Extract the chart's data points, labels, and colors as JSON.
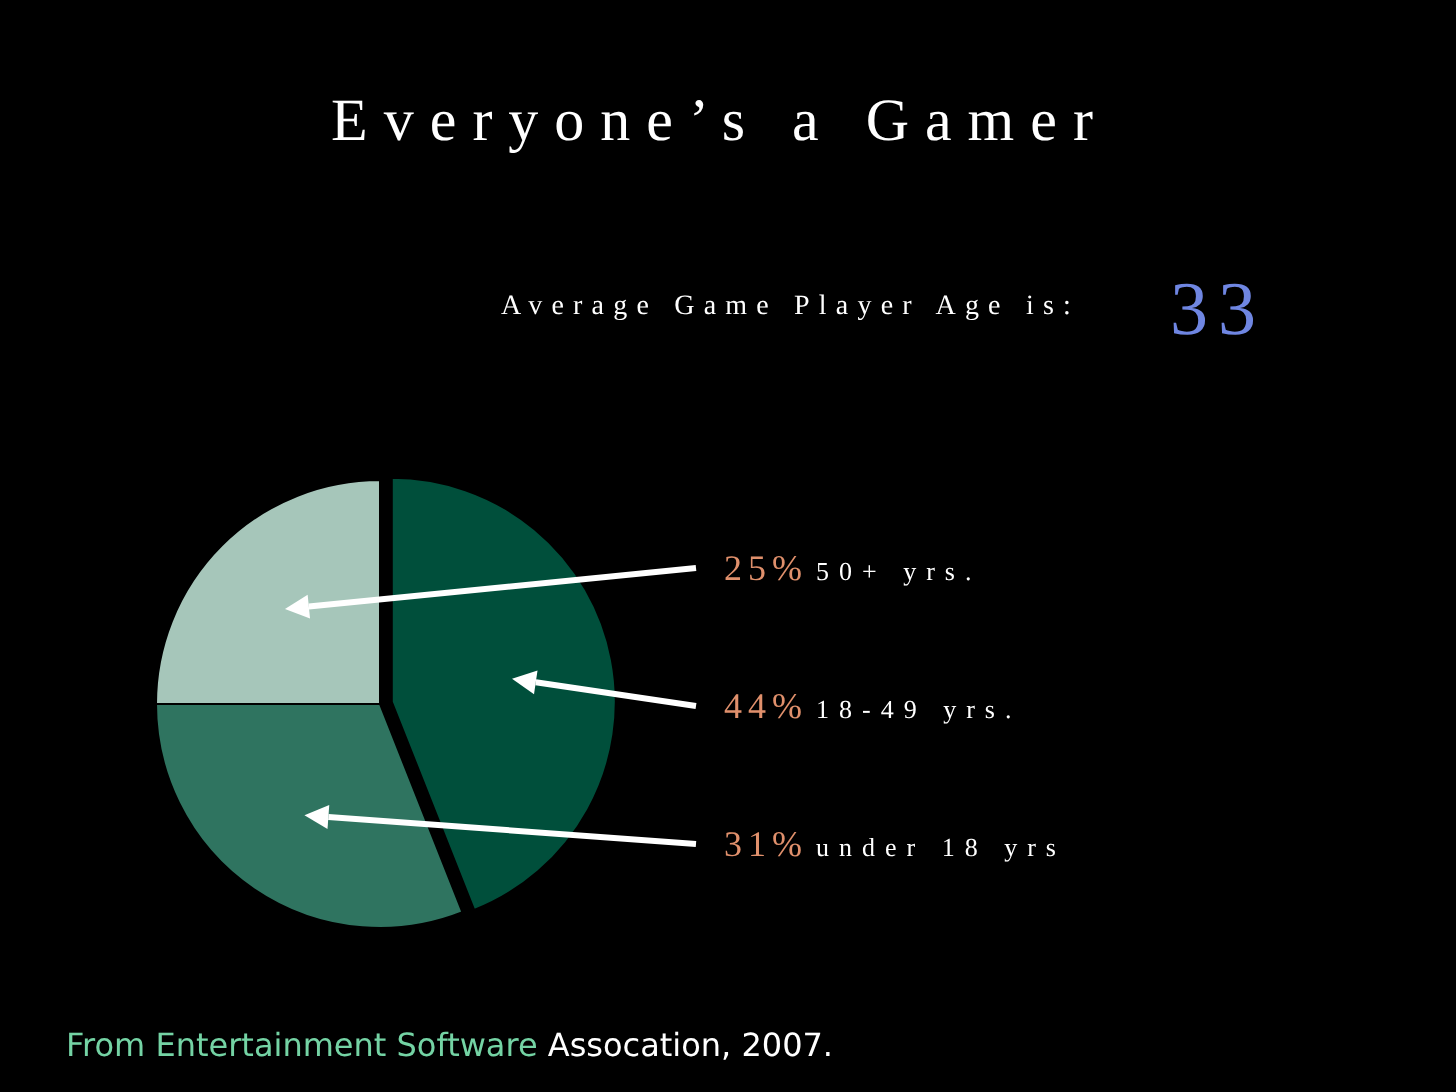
{
  "chart_data": {
    "type": "pie",
    "title": "Everyone’s a Gamer",
    "subtitle": "Average Game Player Age is: 33",
    "categories": [
      "50+ yrs.",
      "18-49 yrs.",
      "under 18 yrs"
    ],
    "values": [
      25,
      44,
      31
    ],
    "value_labels": [
      "25%",
      "44%",
      "31%"
    ],
    "colors": [
      "#a6c6ba",
      "#004f3b",
      "#2f7460"
    ],
    "annotations": [
      "From Entertainment Software Assocation, 2007."
    ]
  }
}
